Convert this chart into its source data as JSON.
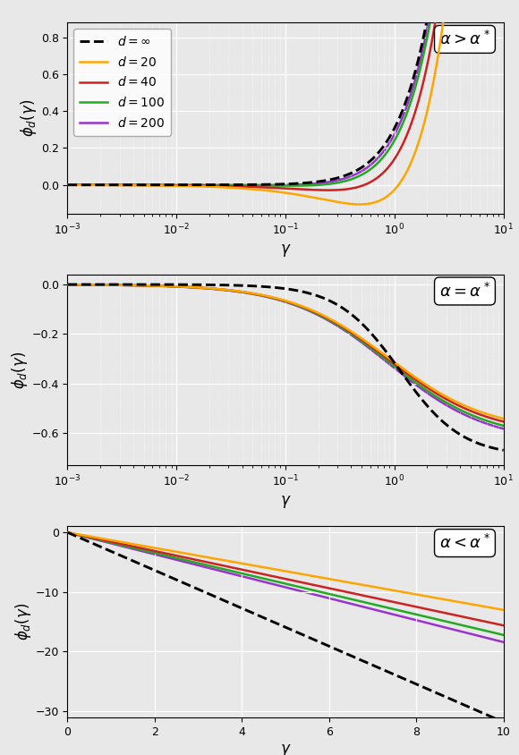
{
  "colors": {
    "inf": "#000000",
    "d20": "#FFA500",
    "d40": "#CC2222",
    "d100": "#22AA22",
    "d200": "#9933CC"
  },
  "background_color": "#E8E8E8",
  "ylabel": "$\\phi_d(\\gamma)$",
  "xlabel": "$\\gamma$",
  "panel1_annotation": "$\\alpha > \\alpha^*$",
  "panel2_annotation": "$\\alpha = \\alpha^*$",
  "panel3_annotation": "$\\alpha < \\alpha^*$",
  "panel1_ylim": [
    -0.155,
    0.88
  ],
  "panel2_ylim": [
    -0.73,
    0.04
  ],
  "panel3_ylim": [
    -31,
    1.0
  ],
  "panel3_xlim": [
    0,
    10
  ],
  "lw": 1.8
}
